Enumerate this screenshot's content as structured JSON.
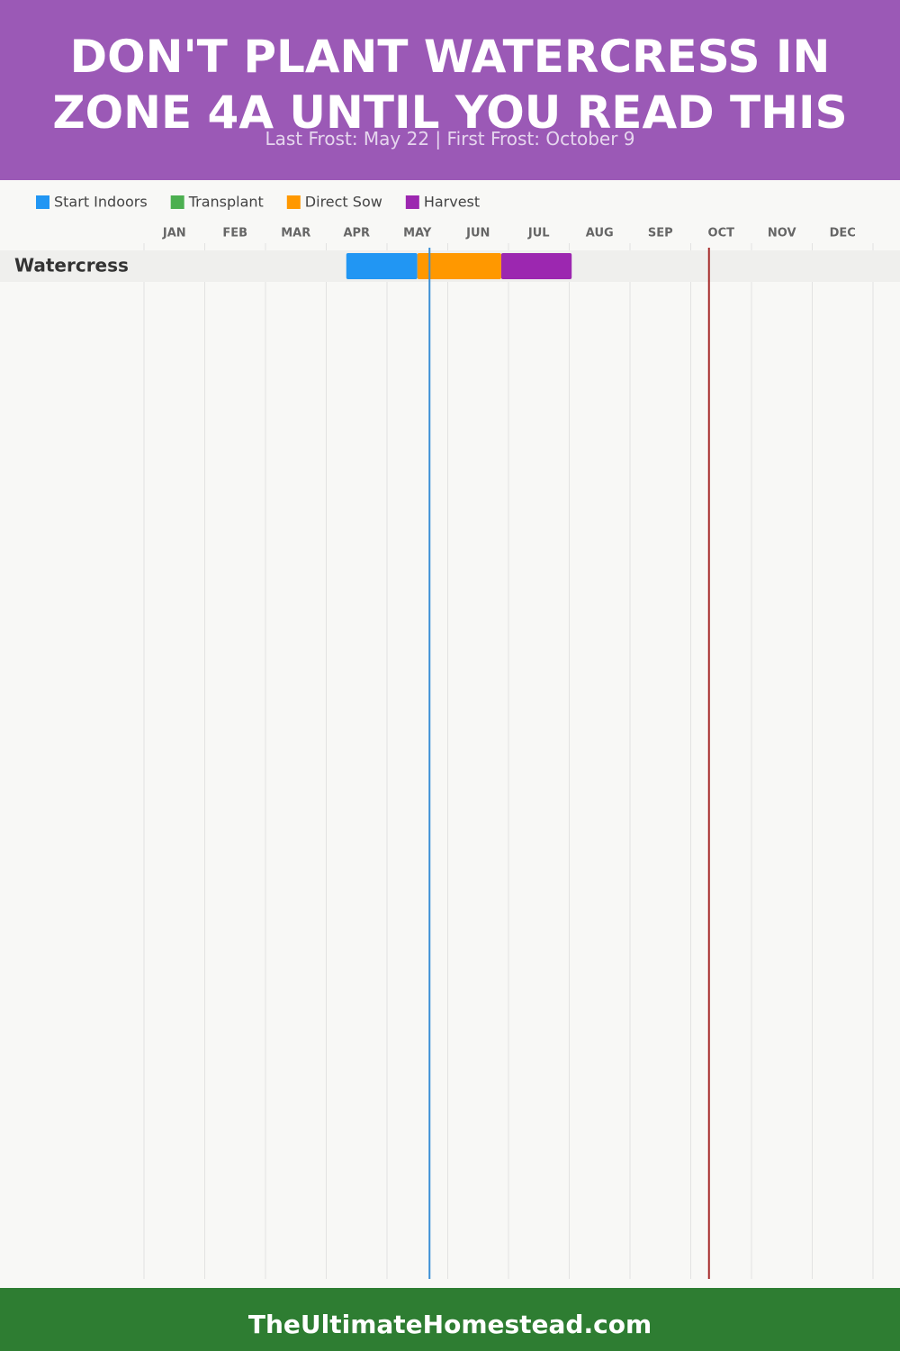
{
  "chart_data": {
    "type": "gantt",
    "title": "DON'T PLANT WATERCRESS IN ZONE 4A UNTIL YOU READ THIS",
    "subtitle": "Last Frost: May 22 | First Frost: October 9",
    "months": [
      "JAN",
      "FEB",
      "MAR",
      "APR",
      "MAY",
      "JUN",
      "JUL",
      "AUG",
      "SEP",
      "OCT",
      "NOV",
      "DEC"
    ],
    "xlim": [
      0,
      12
    ],
    "categories": [
      "Watercress"
    ],
    "series": [
      {
        "name": "Start Indoors",
        "color": "#2196f3",
        "values": [
          [
            3.33,
            4.5
          ]
        ]
      },
      {
        "name": "Transplant",
        "color": "#4caf50",
        "values": [
          null
        ]
      },
      {
        "name": "Direct Sow",
        "color": "#ff9800",
        "values": [
          [
            4.5,
            5.88
          ]
        ]
      },
      {
        "name": "Harvest",
        "color": "#9c27b0",
        "values": [
          [
            5.88,
            7.04
          ]
        ]
      }
    ],
    "frost_lines": [
      {
        "value": 4.7,
        "color": "#3a8fd6"
      },
      {
        "value": 9.3,
        "color": "#a52a2a"
      }
    ],
    "footer": "TheUltimateHomestead.com"
  }
}
